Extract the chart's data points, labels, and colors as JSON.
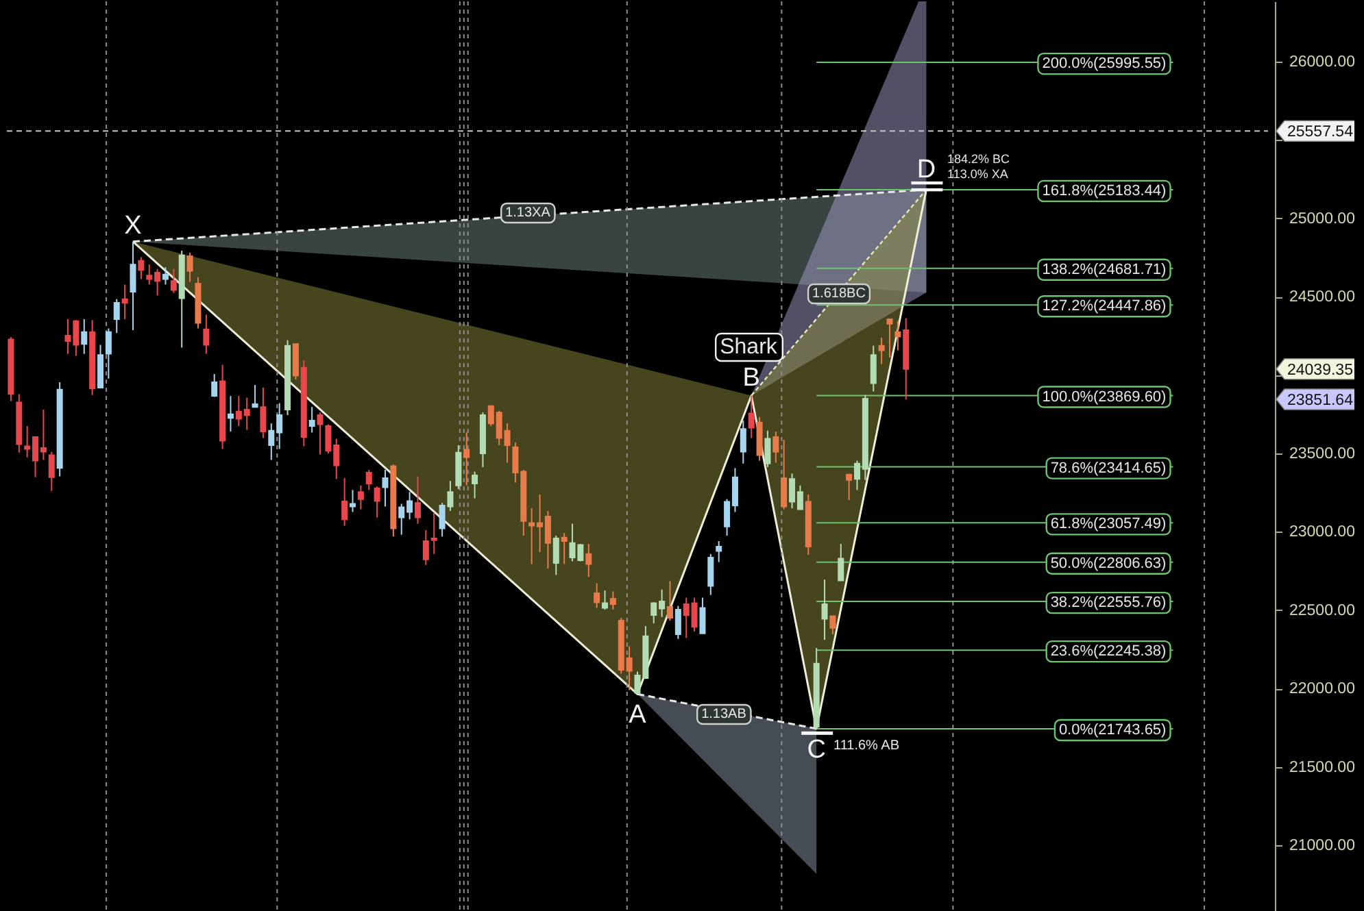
{
  "chart_data": {
    "type": "candlestick",
    "categories": [
      null,
      null,
      null,
      null,
      null,
      null,
      null,
      null,
      null,
      null,
      null,
      null,
      null,
      null,
      null,
      null,
      null,
      null,
      null,
      null,
      null,
      null,
      null,
      null,
      null,
      null,
      null,
      null,
      null,
      null,
      null,
      null,
      null,
      null,
      null,
      null,
      null,
      null,
      null,
      null,
      null,
      null,
      null,
      null,
      null,
      null,
      null,
      null,
      null,
      null,
      null,
      null,
      null,
      null,
      null,
      null,
      null,
      null,
      null,
      null,
      null,
      null,
      null,
      null,
      null,
      null,
      null,
      null,
      null,
      null,
      null,
      null,
      null,
      null,
      null,
      null,
      null,
      null,
      null,
      null,
      null,
      null,
      null,
      null,
      null,
      null,
      null,
      null,
      null,
      null,
      null,
      null,
      null,
      null,
      null,
      null,
      null,
      null,
      null,
      null,
      null,
      null,
      null,
      null,
      null,
      null,
      null,
      null,
      null,
      null,
      null,
      null,
      null,
      null,
      null,
      null,
      null,
      null,
      null,
      null,
      null,
      null,
      null,
      null,
      null,
      null,
      null,
      null,
      null,
      null,
      null,
      null,
      null,
      null,
      null,
      null,
      null,
      null,
      null,
      null,
      null,
      null,
      null,
      null,
      null,
      null,
      null,
      null,
      null,
      null,
      null,
      null,
      null,
      null,
      null
    ],
    "ohlc": [
      [
        24228,
        24243,
        23835,
        23879
      ],
      [
        23826,
        23879,
        23506,
        23559
      ],
      [
        23546,
        23675,
        23476,
        23529
      ],
      [
        23605,
        23610,
        23349,
        23454
      ],
      [
        23535,
        23780,
        23459,
        23511
      ],
      [
        23489,
        23511,
        23261,
        23349
      ],
      [
        23407,
        23955,
        23354,
        23908
      ],
      [
        24252,
        24357,
        24136,
        24217
      ],
      [
        24345,
        24351,
        24123,
        24193
      ],
      [
        24199,
        24357,
        24136,
        24275
      ],
      [
        24275,
        24351,
        23873,
        23914
      ],
      [
        23920,
        24193,
        23920,
        24129
      ],
      [
        24136,
        24298,
        23978,
        24275
      ],
      [
        24357,
        24485,
        24269,
        24462
      ],
      [
        24485,
        24578,
        24357,
        24462
      ],
      [
        24532,
        24852,
        24287,
        24706
      ],
      [
        24730,
        24753,
        24613,
        24671
      ],
      [
        24636,
        24706,
        24578,
        24613
      ],
      [
        24654,
        24678,
        24508,
        24601
      ],
      [
        24613,
        24689,
        24578,
        24642
      ],
      [
        24601,
        24678,
        24525,
        24543
      ],
      [
        24490,
        24794,
        24176,
        24765
      ],
      [
        24759,
        24782,
        24595,
        24665
      ],
      [
        24584,
        24625,
        24298,
        24333
      ],
      [
        24293,
        24386,
        24136,
        24193
      ],
      [
        23867,
        24007,
        23861,
        23955
      ],
      [
        23961,
        24066,
        23529,
        23581
      ],
      [
        23727,
        23867,
        23640,
        23751
      ],
      [
        23768,
        23867,
        23675,
        23721
      ],
      [
        23780,
        23856,
        23651,
        23745
      ],
      [
        23797,
        23937,
        23797,
        23815
      ],
      [
        23797,
        23920,
        23599,
        23640
      ],
      [
        23553,
        23692,
        23459,
        23646
      ],
      [
        23634,
        23821,
        23529,
        23745
      ],
      [
        23780,
        24223,
        23745,
        24188
      ],
      [
        24199,
        24199,
        23972,
        23996
      ],
      [
        24048,
        24094,
        23546,
        23605
      ],
      [
        23675,
        23797,
        23634,
        23710
      ],
      [
        23745,
        23762,
        23494,
        23686
      ],
      [
        23675,
        23686,
        23500,
        23518
      ],
      [
        23553,
        23594,
        23337,
        23424
      ],
      [
        23194,
        23343,
        23039,
        23080
      ],
      [
        23162,
        23267,
        23127,
        23179
      ],
      [
        23255,
        23296,
        23144,
        23209
      ],
      [
        23378,
        23395,
        23267,
        23308
      ],
      [
        23279,
        23290,
        23092,
        23197
      ],
      [
        23284,
        23395,
        23162,
        23343
      ],
      [
        23419,
        23430,
        22970,
        23022
      ],
      [
        23092,
        23179,
        22982,
        23157
      ],
      [
        23127,
        23255,
        23080,
        23197
      ],
      [
        23185,
        23354,
        23052,
        23092
      ],
      [
        22941,
        23011,
        22789,
        22824
      ],
      [
        22958,
        23122,
        22859,
        22947
      ],
      [
        23022,
        23185,
        22970,
        23168
      ],
      [
        23162,
        23325,
        23133,
        23255
      ],
      [
        23296,
        23553,
        23273,
        23506
      ],
      [
        23524,
        23634,
        23296,
        23476
      ],
      [
        23308,
        23384,
        23214,
        23360
      ],
      [
        23500,
        23762,
        23413,
        23745
      ],
      [
        23803,
        23803,
        23675,
        23692
      ],
      [
        23762,
        23774,
        23553,
        23599
      ],
      [
        23646,
        23692,
        23442,
        23553
      ],
      [
        23541,
        23570,
        23314,
        23378
      ],
      [
        23384,
        23395,
        22976,
        23069
      ],
      [
        23057,
        23150,
        22795,
        23039
      ],
      [
        23057,
        23238,
        22871,
        23034
      ],
      [
        23098,
        23133,
        22766,
        22929
      ],
      [
        22801,
        22976,
        22725,
        22958
      ],
      [
        22964,
        22993,
        22795,
        22941
      ],
      [
        22836,
        23052,
        22812,
        22929
      ],
      [
        22818,
        22923,
        22812,
        22917
      ],
      [
        22859,
        22923,
        22713,
        22795
      ],
      [
        22609,
        22672,
        22515,
        22550
      ],
      [
        22515,
        22626,
        22504,
        22545
      ],
      [
        22574,
        22620,
        22504,
        22539
      ],
      [
        22434,
        22451,
        22095,
        22119
      ],
      [
        22195,
        22270,
        21990,
        22113
      ],
      [
        21973,
        22108,
        21965,
        22084
      ],
      [
        22067,
        22399,
        22067,
        22335
      ],
      [
        22469,
        22550,
        22416,
        22545
      ],
      [
        22510,
        22632,
        22457,
        22556
      ],
      [
        22521,
        22685,
        22434,
        22451
      ],
      [
        22346,
        22527,
        22317,
        22504
      ],
      [
        22539,
        22580,
        22323,
        22469
      ],
      [
        22545,
        22580,
        22364,
        22393
      ],
      [
        22352,
        22580,
        22352,
        22515
      ],
      [
        22655,
        22859,
        22597,
        22836
      ],
      [
        22877,
        22941,
        22807,
        22906
      ],
      [
        23034,
        23209,
        22976,
        23192
      ],
      [
        23168,
        23407,
        23127,
        23349
      ],
      [
        23511,
        23710,
        23436,
        23657
      ],
      [
        23756,
        23870,
        23599,
        23664
      ],
      [
        23698,
        23733,
        23454,
        23489
      ],
      [
        23436,
        23646,
        23413,
        23594
      ],
      [
        23605,
        23640,
        23442,
        23511
      ],
      [
        23343,
        23587,
        23144,
        23162
      ],
      [
        23192,
        23372,
        23150,
        23337
      ],
      [
        23144,
        23296,
        23144,
        23255
      ],
      [
        23192,
        23238,
        22853,
        22906
      ],
      [
        21755,
        22259,
        21744,
        22160
      ],
      [
        22445,
        22696,
        22311,
        22539
      ],
      [
        22462,
        22462,
        22346,
        22387
      ],
      [
        22690,
        22923,
        22690,
        22830
      ],
      [
        23366,
        23366,
        23203,
        23331
      ],
      [
        23337,
        23454,
        23267,
        23436
      ],
      [
        23401,
        23873,
        23331,
        23850
      ],
      [
        23948,
        24188,
        23896,
        24129
      ],
      [
        24188,
        24240,
        24071,
        24158
      ],
      [
        24357,
        24357,
        24112,
        24328
      ],
      [
        24275,
        24345,
        24158,
        24246
      ],
      [
        24287,
        24363,
        23844,
        24039.35
      ],
      null,
      null,
      null,
      null,
      null,
      null,
      null,
      null,
      null,
      null,
      null,
      null,
      null,
      null,
      null,
      null,
      null,
      null,
      null,
      null,
      null,
      null,
      null,
      null,
      null,
      null,
      null,
      null,
      null,
      null,
      null,
      null,
      null,
      null,
      null,
      null,
      null,
      null,
      null,
      null,
      null,
      null,
      null,
      null
    ],
    "colors": [
      "#e8474c",
      "#e8474c",
      "#e8474c",
      "#e8474c",
      "#e8474c",
      "#e8474c",
      "#a6d4ec",
      "#e8474c",
      "#e8474c",
      "#a6d4ec",
      "#e8474c",
      "#a6d4ec",
      "#a6d4ec",
      "#a6d4ec",
      "#e8474c",
      "#a6d4ec",
      "#e8474c",
      "#e8474c",
      "#e8474c",
      "#a6d4ec",
      "#e8474c",
      "#b4dcb4",
      "#e87a4c",
      "#e87a4c",
      "#e8474c",
      "#a6d4ec",
      "#e8474c",
      "#a6d4ec",
      "#e8474c",
      "#e8474c",
      "#a6d4ec",
      "#e8474c",
      "#a6d4ec",
      "#a6d4ec",
      "#b4dcb4",
      "#e87a4c",
      "#e8474c",
      "#a6d4ec",
      "#e8474c",
      "#e8474c",
      "#e8474c",
      "#e8474c",
      "#a6d4ec",
      "#e8474c",
      "#e8474c",
      "#e8474c",
      "#a6d4ec",
      "#e87a4c",
      "#a6d4ec",
      "#a6d4ec",
      "#e8474c",
      "#e8474c",
      "#e8474c",
      "#a6d4ec",
      "#b4dcb4",
      "#b4dcb4",
      "#e87a4c",
      "#b4dcb4",
      "#b4dcb4",
      "#e87a4c",
      "#e87a4c",
      "#e87a4c",
      "#e87a4c",
      "#e87a4c",
      "#e87a4c",
      "#e87a4c",
      "#e87a4c",
      "#b4dcb4",
      "#e87a4c",
      "#b4dcb4",
      "#b4dcb4",
      "#e87a4c",
      "#e87a4c",
      "#b4dcb4",
      "#e87a4c",
      "#e87a4c",
      "#e87a4c",
      "#b4dcb4",
      "#b4dcb4",
      "#b4dcb4",
      "#b4dcb4",
      "#e87a4c",
      "#a6d4ec",
      "#e8474c",
      "#e8474c",
      "#a6d4ec",
      "#a6d4ec",
      "#a6d4ec",
      "#a6d4ec",
      "#a6d4ec",
      "#a6d4ec",
      "#e8474c",
      "#e87a4c",
      "#b4dcb4",
      "#e87a4c",
      "#e87a4c",
      "#b4dcb4",
      "#b4dcb4",
      "#e87a4c",
      "#b4dcb4",
      "#b4dcb4",
      "#e87a4c",
      "#b4dcb4",
      "#e87a4c",
      "#b4dcb4",
      "#b4dcb4",
      "#b4dcb4",
      "#e87a4c",
      "#e87a4c",
      "#e87a4c",
      "#e8474c",
      null,
      null,
      null,
      null,
      null,
      null,
      null,
      null,
      null,
      null,
      null,
      null,
      null,
      null,
      null,
      null,
      null,
      null,
      null,
      null,
      null,
      null,
      null,
      null,
      null,
      null,
      null,
      null,
      null,
      null,
      null,
      null,
      null,
      null,
      null,
      null,
      null,
      null,
      null,
      null,
      null,
      null,
      null,
      null
    ],
    "ylim": [
      20572,
      26385
    ],
    "yticks": [
      {
        "value": 21000,
        "label": "21000.00"
      },
      {
        "value": 21500,
        "label": "21500.00"
      },
      {
        "value": 22000,
        "label": "22000.00"
      },
      {
        "value": 22500,
        "label": "22500.00"
      },
      {
        "value": 23000,
        "label": "23000.00"
      },
      {
        "value": 23500,
        "label": "23500.00"
      },
      {
        "value": 24000,
        "label": null
      },
      {
        "value": 24500,
        "label": "24500.00"
      },
      {
        "value": 25000,
        "label": "25000.00"
      },
      {
        "value": 25500,
        "label": null
      },
      {
        "value": 26000,
        "label": "26000.00"
      }
    ],
    "grid": "x",
    "ref_lines": [
      {
        "axis": "y",
        "value": 25557.54,
        "label": "25557.54",
        "color": "#c8c8c8",
        "line_style": "dashed"
      },
      {
        "axis": "y",
        "value": 25995.55,
        "label": "200.0%(25995.55)",
        "color": "#6ec46e"
      },
      {
        "axis": "y",
        "value": 25183.44,
        "label": "161.8%(25183.44)",
        "color": "#6ec46e"
      },
      {
        "axis": "y",
        "value": 24681.71,
        "label": "138.2%(24681.71)",
        "color": "#6ec46e"
      },
      {
        "axis": "y",
        "value": 24447.86,
        "label": "127.2%(24447.86)",
        "color": "#6ec46e"
      },
      {
        "axis": "y",
        "value": 23869.6,
        "label": "100.0%(23869.60)",
        "color": "#6ec46e"
      },
      {
        "axis": "y",
        "value": 23414.65,
        "label": "78.6%(23414.65)",
        "color": "#6ec46e"
      },
      {
        "axis": "y",
        "value": 23057.49,
        "label": "61.8%(23057.49)",
        "color": "#6ec46e"
      },
      {
        "axis": "y",
        "value": 22806.63,
        "label": "50.0%(22806.63)",
        "color": "#6ec46e"
      },
      {
        "axis": "y",
        "value": 22555.76,
        "label": "38.2%(22555.76)",
        "color": "#6ec46e"
      },
      {
        "axis": "y",
        "value": 22245.38,
        "label": "23.6%(22245.38)",
        "color": "#6ec46e"
      },
      {
        "axis": "y",
        "value": 21743.65,
        "label": "0.0%(21743.65)",
        "color": "#6ec46e"
      }
    ],
    "annotations": [
      "X",
      "A",
      "B",
      "C",
      "D",
      "Shark",
      "1.13XA",
      "1.618BC",
      "1.13AB",
      "111.6% AB",
      "184.2% BC",
      "113.0% XA",
      "24039.35",
      "23851.64"
    ]
  }
}
